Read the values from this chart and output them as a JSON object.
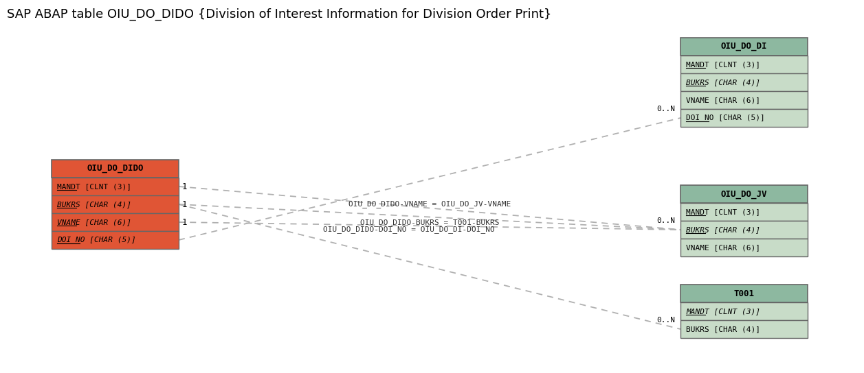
{
  "title": "SAP ABAP table OIU_DO_DIDO {Division of Interest Information for Division Order Print}",
  "bg": "#ffffff",
  "main_table": {
    "name": "OIU_DO_DIDO",
    "header_color": "#e05535",
    "row_color": "#e05535",
    "fields": [
      {
        "text": "MANDT [CLNT (3)]",
        "key": "MANDT",
        "italic": false,
        "underline": true
      },
      {
        "text": "BUKRS [CHAR (4)]",
        "key": "BUKRS",
        "italic": true,
        "underline": true
      },
      {
        "text": "VNAME [CHAR (6)]",
        "key": "VNAME",
        "italic": true,
        "underline": true
      },
      {
        "text": "DOI_NO [CHAR (5)]",
        "key": "DOI_NO",
        "italic": true,
        "underline": true
      }
    ]
  },
  "right_tables": [
    {
      "name": "OIU_DO_DI",
      "header_color": "#8db8a0",
      "row_color": "#c8dcc8",
      "fields": [
        {
          "text": "MANDT [CLNT (3)]",
          "key": "MANDT",
          "italic": false,
          "underline": true
        },
        {
          "text": "BUKRS [CHAR (4)]",
          "key": "BUKRS",
          "italic": true,
          "underline": true
        },
        {
          "text": "VNAME [CHAR (6)]",
          "key": "VNAME",
          "italic": false,
          "underline": false
        },
        {
          "text": "DOI_NO [CHAR (5)]",
          "key": "DOI_NO",
          "italic": false,
          "underline": true
        }
      ]
    },
    {
      "name": "OIU_DO_JV",
      "header_color": "#8db8a0",
      "row_color": "#c8dcc8",
      "fields": [
        {
          "text": "MANDT [CLNT (3)]",
          "key": "MANDT",
          "italic": false,
          "underline": true
        },
        {
          "text": "BUKRS [CHAR (4)]",
          "key": "BUKRS",
          "italic": true,
          "underline": true
        },
        {
          "text": "VNAME [CHAR (6)]",
          "key": "VNAME",
          "italic": false,
          "underline": false
        }
      ]
    },
    {
      "name": "T001",
      "header_color": "#8db8a0",
      "row_color": "#c8dcc8",
      "fields": [
        {
          "text": "MANDT [CLNT (3)]",
          "key": "MANDT",
          "italic": true,
          "underline": true
        },
        {
          "text": "BUKRS [CHAR (4)]",
          "key": "BUKRS",
          "italic": false,
          "underline": false
        }
      ]
    }
  ]
}
